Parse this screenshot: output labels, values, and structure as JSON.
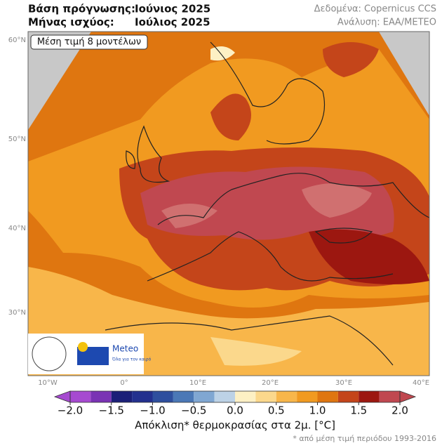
{
  "header": {
    "forecast_base_label": "Βάση πρόγνωσης:",
    "forecast_base_value": "Ιούνιος 2025",
    "valid_month_label": "Μήνας ισχύος:",
    "valid_month_value": "Ιούλιος 2025",
    "data_source": "Δεδομένα: Copernicus CCS",
    "analysis": "Ανάλυση: ΕΑΑ/METEO"
  },
  "map": {
    "annotation": "Μέση τιμή 8 μοντέλων",
    "lat_labels": [
      "60°N",
      "50°N",
      "40°N",
      "30°N"
    ],
    "lon_labels": [
      "10°W",
      "0°",
      "10°E",
      "20°E",
      "30°E",
      "40°E"
    ],
    "logo_text": "Meteo",
    "logo_tagline": "Όλα για τον καιρό"
  },
  "colorbar": {
    "bins": [
      -2,
      -1.75,
      -1.5,
      -1.25,
      -1,
      -0.75,
      -0.5,
      -0.25,
      0,
      0.25,
      0.5,
      0.75,
      1,
      1.25,
      1.5,
      1.75,
      2
    ],
    "colors": [
      "#a64ad0",
      "#7a33b4",
      "#1b1f78",
      "#23308e",
      "#2e4f9e",
      "#4b78b6",
      "#80a7d2",
      "#bdd2e6",
      "#fdf0c4",
      "#fbd88c",
      "#f8b64a",
      "#f19a20",
      "#df7610",
      "#c4451a",
      "#9c1710",
      "#c04850"
    ],
    "ticks": [
      {
        "value": -2,
        "label": "−2.0"
      },
      {
        "value": -1.5,
        "label": "−1.5"
      },
      {
        "value": -1,
        "label": "−1.0"
      },
      {
        "value": -0.5,
        "label": "−0.5"
      },
      {
        "value": 0,
        "label": "0.0"
      },
      {
        "value": 0.5,
        "label": "0.5"
      },
      {
        "value": 1,
        "label": "1.0"
      },
      {
        "value": 1.5,
        "label": "1.5"
      },
      {
        "value": 2,
        "label": "2.0"
      }
    ],
    "label": "Απόκλιση* θερμοκρασίας στα 2μ. [°C]"
  },
  "footnote": "* από μέση τιμή περιόδου 1993-2016"
}
